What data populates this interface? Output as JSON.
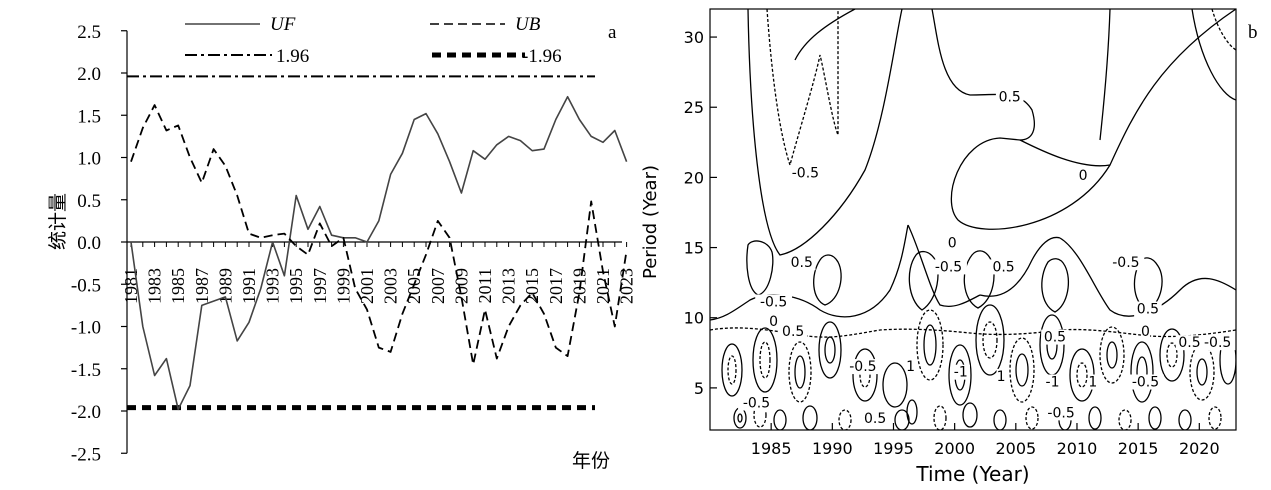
{
  "chart_data": [
    {
      "type": "line",
      "panel_label": "a",
      "ylabel": "统计量",
      "xlabel": "年份",
      "ylim": [
        -2.5,
        2.5
      ],
      "yticks": [
        "2.5",
        "2.0",
        "1.5",
        "1.0",
        "0.5",
        "0.0",
        "-0.5",
        "-1.0",
        "-1.5",
        "-2.0",
        "-2.5"
      ],
      "xticks": [
        "1981",
        "1983",
        "1985",
        "1987",
        "1989",
        "1991",
        "1993",
        "1995",
        "1997",
        "1999",
        "2001",
        "2003",
        "2005",
        "2007",
        "2009",
        "2011",
        "2013",
        "2015",
        "2017",
        "2019",
        "2021",
        "2023"
      ],
      "legend": {
        "uf": "UF",
        "ub": "UB",
        "pos": "1.96",
        "neg": "-1.96"
      },
      "thresholds": [
        1.96,
        -1.96
      ],
      "x": [
        1981,
        1982,
        1983,
        1984,
        1985,
        1986,
        1987,
        1988,
        1989,
        1990,
        1991,
        1992,
        1993,
        1994,
        1995,
        1996,
        1997,
        1998,
        1999,
        2000,
        2001,
        2002,
        2003,
        2004,
        2005,
        2006,
        2007,
        2008,
        2009,
        2010,
        2011,
        2012,
        2013,
        2014,
        2015,
        2016,
        2017,
        2018,
        2019,
        2020,
        2021,
        2022,
        2023
      ],
      "series": [
        {
          "name": "UF",
          "values": [
            0.0,
            -1.0,
            -1.58,
            -1.38,
            -1.98,
            -1.7,
            -0.75,
            -0.7,
            -0.65,
            -1.17,
            -0.95,
            -0.55,
            0.0,
            -0.4,
            0.55,
            0.15,
            0.42,
            0.08,
            0.05,
            0.05,
            0.0,
            0.25,
            0.8,
            1.05,
            1.45,
            1.52,
            1.28,
            0.95,
            0.58,
            1.08,
            0.98,
            1.15,
            1.25,
            1.2,
            1.08,
            1.1,
            1.45,
            1.72,
            1.45,
            1.25,
            1.18,
            1.32,
            0.95
          ]
        },
        {
          "name": "UB",
          "values": [
            0.95,
            1.35,
            1.62,
            1.32,
            1.38,
            1.0,
            0.7,
            1.1,
            0.9,
            0.55,
            0.1,
            0.05,
            0.08,
            0.1,
            -0.05,
            -0.15,
            0.22,
            -0.05,
            0.05,
            -0.55,
            -0.8,
            -1.25,
            -1.3,
            -0.85,
            -0.5,
            -0.15,
            0.25,
            0.05,
            -0.65,
            -1.45,
            -0.8,
            -1.38,
            -1.0,
            -0.75,
            -0.6,
            -0.85,
            -1.25,
            -1.35,
            -0.6,
            0.48,
            -0.35,
            -1.0,
            -0.1
          ]
        }
      ]
    },
    {
      "type": "contour",
      "panel_label": "b",
      "xlabel": "Time (Year)",
      "ylabel": "Period (Year)",
      "xlim": [
        1980,
        2023
      ],
      "ylim": [
        2,
        32
      ],
      "xticks": [
        "1985",
        "1990",
        "1995",
        "2000",
        "2005",
        "2010",
        "2015",
        "2020"
      ],
      "yticks": [
        "5",
        "10",
        "15",
        "20",
        "25",
        "30"
      ],
      "contour_labels": [
        {
          "text": "0.5",
          "x": 2004.5,
          "y": 25.4
        },
        {
          "text": "0",
          "x": 2010.5,
          "y": 19.8
        },
        {
          "text": "-0.5",
          "x": 1987.8,
          "y": 20.0
        },
        {
          "text": "0.5",
          "x": 1987.5,
          "y": 13.6
        },
        {
          "text": "0",
          "x": 1999.8,
          "y": 15.0
        },
        {
          "text": "-0.5",
          "x": 1999.5,
          "y": 13.3
        },
        {
          "text": "0.5",
          "x": 2004.0,
          "y": 13.3
        },
        {
          "text": "-0.5",
          "x": 2014.0,
          "y": 13.6
        },
        {
          "text": "-0.5",
          "x": 1985.2,
          "y": 10.8
        },
        {
          "text": "0",
          "x": 1985.2,
          "y": 9.4
        },
        {
          "text": "0.5",
          "x": 1986.8,
          "y": 8.7
        },
        {
          "text": "0.5",
          "x": 2015.8,
          "y": 10.3
        },
        {
          "text": "0",
          "x": 2015.6,
          "y": 8.7
        },
        {
          "text": "-0.5",
          "x": 2021.5,
          "y": 7.9
        },
        {
          "text": "0.5",
          "x": 2019.2,
          "y": 7.9
        },
        {
          "text": "0.5",
          "x": 2008.2,
          "y": 8.3
        },
        {
          "text": "-0.5",
          "x": 1992.5,
          "y": 6.2
        },
        {
          "text": "1",
          "x": 1996.4,
          "y": 6.2
        },
        {
          "text": "-1",
          "x": 2000.5,
          "y": 5.8
        },
        {
          "text": "1",
          "x": 2003.8,
          "y": 5.5
        },
        {
          "text": "-1",
          "x": 2008.0,
          "y": 5.1
        },
        {
          "text": "1",
          "x": 2011.3,
          "y": 5.1
        },
        {
          "text": "-0.5",
          "x": 2015.6,
          "y": 5.1
        },
        {
          "text": "-0.5",
          "x": 1983.8,
          "y": 3.6
        },
        {
          "text": "0.5",
          "x": 1993.5,
          "y": 2.5
        },
        {
          "text": "-0.5",
          "x": 2008.7,
          "y": 2.9
        }
      ]
    }
  ]
}
